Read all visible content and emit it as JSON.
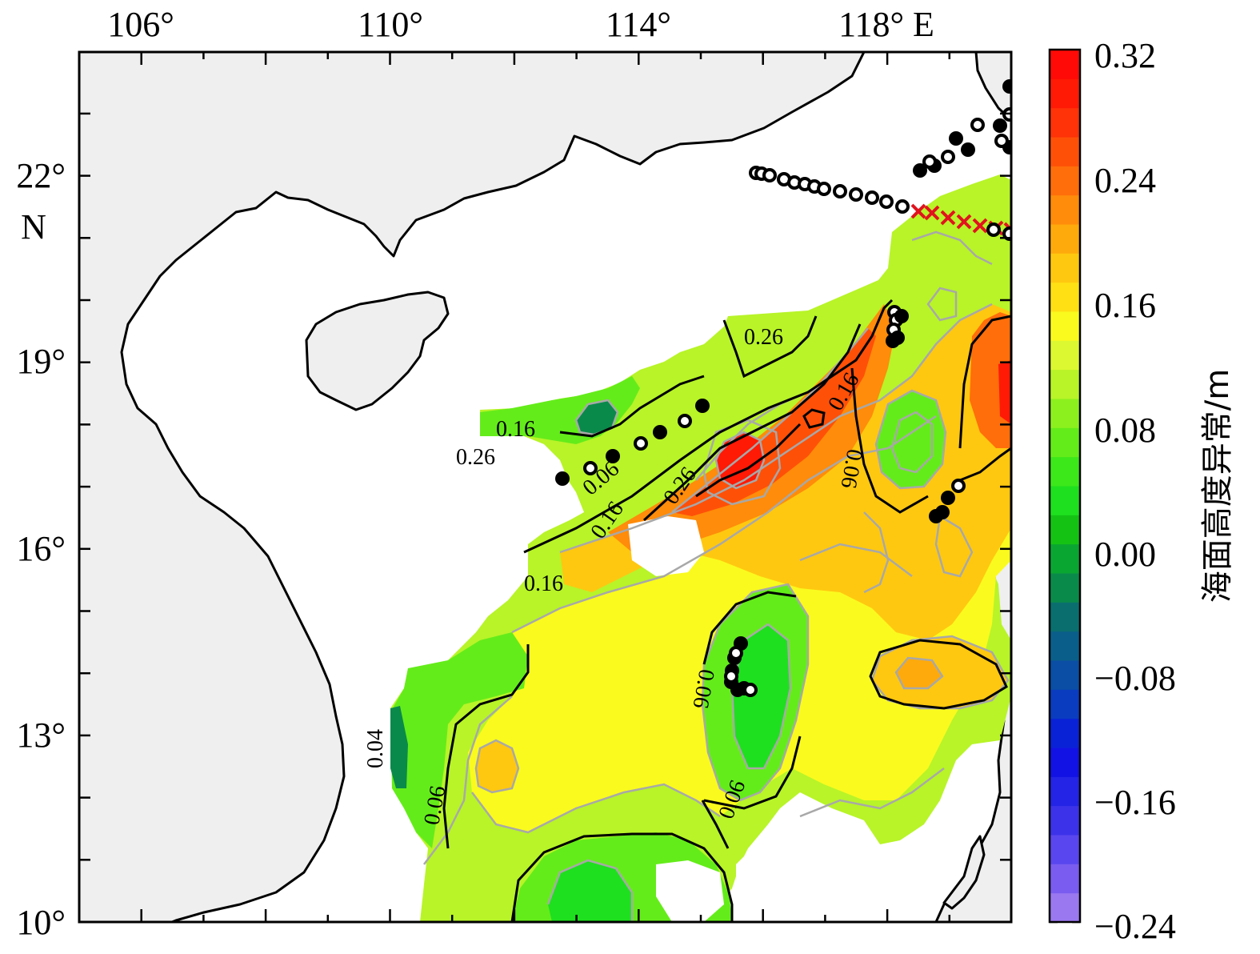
{
  "map": {
    "x_axis": {
      "tick_labels": [
        "106°",
        "110°",
        "114°",
        "118° E"
      ],
      "extent": [
        105,
        120
      ]
    },
    "y_axis": {
      "tick_labels": [
        "10°",
        "13°",
        "16°",
        "19°",
        "22°"
      ],
      "hemisphere": "N",
      "extent": [
        10,
        24
      ]
    },
    "colors": {
      "land": "#efefef",
      "coast": "#000000",
      "contour_minor": "#a8a8a8",
      "contour_major": "#000000",
      "cross_marker": "#e0141e"
    },
    "contour_labels": [
      "0.26",
      "0.16",
      "0.26",
      "0.06",
      "0.16",
      "0.26",
      "0.16",
      "0.06",
      "0.16",
      "0.06",
      "0.04",
      "0.06",
      "0.06"
    ],
    "field_legend_icons": [
      "filled-circle-icon",
      "open-circle-icon",
      "red-cross-icon"
    ]
  },
  "colorbar": {
    "title": "海面高度异常/m",
    "tick_labels": [
      "0.32",
      "0.24",
      "0.16",
      "0.08",
      "0.00",
      "−0.08",
      "−0.16",
      "−0.24"
    ],
    "range": [
      -0.24,
      0.32
    ],
    "colors_bottom_to_top": [
      "#9a78f0",
      "#7a5cf0",
      "#5a46ee",
      "#3c32ea",
      "#2424e6",
      "#1212e4",
      "#0a22d6",
      "#0a3cc0",
      "#0a4ea6",
      "#0a5f8a",
      "#0a6e6e",
      "#0a8a4a",
      "#0aa632",
      "#14c214",
      "#1ee01e",
      "#3ce81a",
      "#64ec1a",
      "#8cf01e",
      "#b8f428",
      "#dcf830",
      "#fafa1e",
      "#ffe014",
      "#ffc810",
      "#ffaa0c",
      "#ff8c0a",
      "#ff6e0a",
      "#ff5008",
      "#ff3208",
      "#ff1a06",
      "#ff0a06"
    ]
  }
}
